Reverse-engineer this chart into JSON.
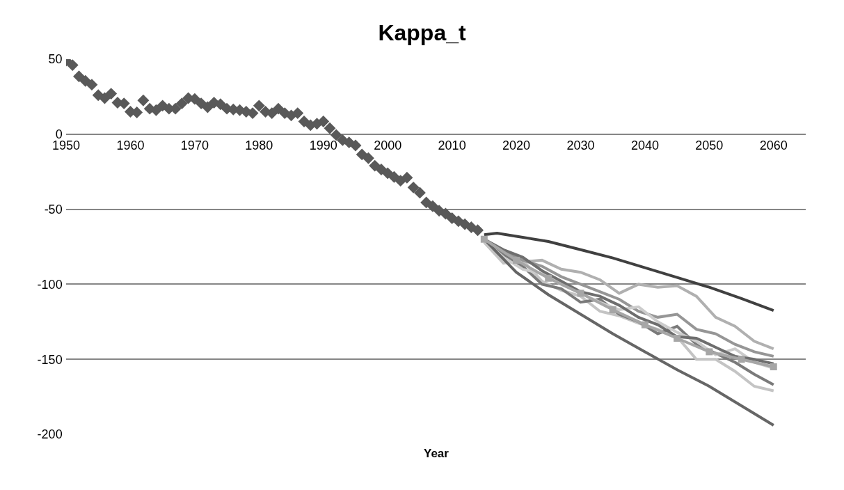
{
  "chart_data": {
    "type": "line",
    "title": "Kappa_t",
    "xlabel": "Year",
    "xlim": [
      1950,
      2065
    ],
    "xticks": [
      1950,
      1960,
      1970,
      1980,
      1990,
      2000,
      2010,
      2020,
      2030,
      2040,
      2050,
      2060
    ],
    "ylim": [
      -200,
      50
    ],
    "yticks": [
      -200,
      -150,
      -100,
      -50,
      0,
      50
    ],
    "grid": "y",
    "series": [
      {
        "type": "scatter",
        "color": "#595959",
        "marker": "diamond",
        "x": [
          1950,
          1951,
          1952,
          1953,
          1954,
          1955,
          1956,
          1957,
          1958,
          1959,
          1960,
          1961,
          1962,
          1963,
          1964,
          1965,
          1966,
          1967,
          1968,
          1969,
          1970,
          1971,
          1972,
          1973,
          1974,
          1975,
          1976,
          1977,
          1978,
          1979,
          1980,
          1981,
          1982,
          1983,
          1984,
          1985,
          1986,
          1987,
          1988,
          1989,
          1990,
          1991,
          1992,
          1993,
          1994,
          1995,
          1996,
          1997,
          1998,
          1999,
          2000,
          2001,
          2002,
          2003,
          2004,
          2005,
          2006,
          2007,
          2008,
          2009,
          2010,
          2011,
          2012,
          2013,
          2014
        ],
        "values": [
          49,
          46,
          38.5,
          35.5,
          33,
          26,
          24,
          27,
          21,
          20.5,
          15,
          14.5,
          22.5,
          17,
          16,
          19,
          17,
          17,
          20.5,
          24,
          23.5,
          20.5,
          18,
          21,
          20,
          17,
          16.5,
          16,
          15,
          14,
          19,
          15,
          14,
          17,
          14,
          12.5,
          14,
          8.5,
          6,
          7,
          8.5,
          4,
          -0.5,
          -4,
          -5.5,
          -7.5,
          -13.5,
          -16,
          -21,
          -23.5,
          -26,
          -28.5,
          -31,
          -29,
          -35.5,
          -39,
          -45.5,
          -48,
          -51,
          -53,
          -56,
          -58,
          -60,
          -62,
          -64
        ]
      },
      {
        "color": "#a6a6a6",
        "marker": "square",
        "line_style": "solid",
        "x": [
          2015,
          2020,
          2025,
          2030,
          2035,
          2040,
          2045,
          2050,
          2055,
          2060
        ],
        "values": [
          -70,
          -84,
          -96,
          -106,
          -117,
          -127,
          -136,
          -145,
          -150,
          -155
        ]
      },
      {
        "color": "#b0b0b0",
        "line_style": "solid",
        "x": [
          2015,
          2018,
          2021,
          2024,
          2027,
          2030,
          2033,
          2036,
          2039,
          2042,
          2045,
          2048,
          2051,
          2054,
          2057,
          2060
        ],
        "values": [
          -70,
          -78,
          -85,
          -84,
          -90,
          -92,
          -97,
          -106,
          -100,
          -102,
          -101,
          -108,
          -122,
          -128,
          -138,
          -143
        ]
      },
      {
        "color": "#c4c4c4",
        "line_style": "solid",
        "x": [
          2015,
          2018,
          2021,
          2024,
          2027,
          2030,
          2033,
          2036,
          2039,
          2042,
          2045,
          2048,
          2051,
          2054,
          2057,
          2060
        ],
        "values": [
          -72,
          -86,
          -84,
          -98,
          -104,
          -108,
          -118,
          -121,
          -126,
          -130,
          -135,
          -150,
          -150,
          -158,
          -168,
          -171
        ]
      },
      {
        "color": "#7a7a7a",
        "line_style": "solid",
        "x": [
          2015,
          2018,
          2021,
          2024,
          2027,
          2030,
          2033,
          2036,
          2039,
          2042,
          2045,
          2048,
          2051,
          2054,
          2057,
          2060
        ],
        "values": [
          -70,
          -80,
          -88,
          -100,
          -103,
          -112,
          -110,
          -120,
          -125,
          -133,
          -128,
          -140,
          -146,
          -152,
          -160,
          -167
        ]
      },
      {
        "color": "#969696",
        "line_style": "solid",
        "x": [
          2015,
          2018,
          2021,
          2024,
          2027,
          2030,
          2033,
          2036,
          2039,
          2042,
          2045,
          2048,
          2051,
          2054,
          2057,
          2060
        ],
        "values": [
          -70,
          -78,
          -84,
          -88,
          -95,
          -100,
          -105,
          -110,
          -118,
          -122,
          -120,
          -130,
          -133,
          -140,
          -145,
          -148
        ]
      },
      {
        "color": "#cccccc",
        "line_style": "solid",
        "x": [
          2015,
          2018,
          2021,
          2024,
          2027,
          2030,
          2033,
          2036,
          2039,
          2042,
          2045,
          2048,
          2051,
          2054,
          2057,
          2060
        ],
        "values": [
          -71,
          -82,
          -90,
          -93,
          -100,
          -106,
          -112,
          -117,
          -115,
          -125,
          -132,
          -138,
          -147,
          -143,
          -152,
          -156
        ]
      },
      {
        "color": "#6e6e6e",
        "line_style": "solid",
        "x": [
          2015,
          2018,
          2021,
          2024,
          2027,
          2030,
          2033,
          2036,
          2039,
          2042,
          2045,
          2048,
          2051,
          2054,
          2057,
          2060
        ],
        "values": [
          -70,
          -77,
          -82,
          -91,
          -98,
          -105,
          -108,
          -114,
          -122,
          -127,
          -135,
          -136,
          -142,
          -148,
          -150,
          -153
        ]
      },
      {
        "color": "#404040",
        "line_style": "solid",
        "x": [
          2015,
          2017,
          2020,
          2025,
          2030,
          2035,
          2040,
          2045,
          2050,
          2055,
          2060
        ],
        "values": [
          -67,
          -66,
          -68,
          -71.5,
          -77,
          -82.5,
          -89,
          -95.5,
          -102,
          -109.5,
          -117.5
        ]
      },
      {
        "color": "#666666",
        "line_style": "solid",
        "x": [
          2015,
          2020,
          2025,
          2030,
          2035,
          2040,
          2045,
          2050,
          2055,
          2060
        ],
        "values": [
          -70,
          -92,
          -107,
          -120,
          -133,
          -145,
          -157,
          -168,
          -181,
          -194
        ]
      }
    ]
  }
}
